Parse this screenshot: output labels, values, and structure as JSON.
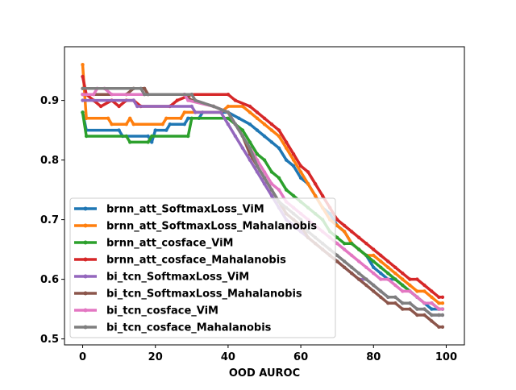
{
  "chart_data": {
    "type": "line",
    "title": "",
    "xlabel": "OOD AUROC",
    "ylabel": "",
    "xlim": [
      -5,
      105
    ],
    "ylim": [
      0.49,
      0.99
    ],
    "xticks": [
      0,
      20,
      40,
      60,
      80,
      100
    ],
    "xtick_labels": [
      "0",
      "20",
      "40",
      "60",
      "80",
      "100"
    ],
    "yticks": [
      0.5,
      0.6,
      0.7,
      0.8,
      0.9
    ],
    "ytick_labels": [
      "0.5",
      "0.6",
      "0.7",
      "0.8",
      "0.9"
    ],
    "grid": false,
    "legend_position": "lower-left",
    "series": [
      {
        "name": "brnn_att_SoftmaxLoss_ViM",
        "color": "#1f77b4",
        "points": [
          [
            0,
            0.88
          ],
          [
            1,
            0.85
          ],
          [
            10,
            0.85
          ],
          [
            11,
            0.84
          ],
          [
            18,
            0.84
          ],
          [
            19,
            0.83
          ],
          [
            20,
            0.85
          ],
          [
            23,
            0.85
          ],
          [
            24,
            0.86
          ],
          [
            28,
            0.86
          ],
          [
            29,
            0.87
          ],
          [
            32,
            0.87
          ],
          [
            33,
            0.88
          ],
          [
            40,
            0.88
          ],
          [
            43,
            0.87
          ],
          [
            46,
            0.86
          ],
          [
            48,
            0.85
          ],
          [
            50,
            0.84
          ],
          [
            52,
            0.83
          ],
          [
            54,
            0.82
          ],
          [
            56,
            0.8
          ],
          [
            58,
            0.79
          ],
          [
            60,
            0.77
          ],
          [
            62,
            0.76
          ],
          [
            64,
            0.74
          ],
          [
            66,
            0.72
          ],
          [
            68,
            0.71
          ],
          [
            70,
            0.69
          ],
          [
            72,
            0.68
          ],
          [
            74,
            0.66
          ],
          [
            76,
            0.65
          ],
          [
            78,
            0.64
          ],
          [
            80,
            0.62
          ],
          [
            82,
            0.61
          ],
          [
            84,
            0.6
          ],
          [
            86,
            0.6
          ],
          [
            88,
            0.59
          ],
          [
            90,
            0.58
          ],
          [
            92,
            0.57
          ],
          [
            94,
            0.56
          ],
          [
            96,
            0.55
          ],
          [
            98,
            0.55
          ],
          [
            99,
            0.55
          ]
        ]
      },
      {
        "name": "brnn_att_SoftmaxLoss_Mahalanobis",
        "color": "#ff7f0e",
        "points": [
          [
            0,
            0.96
          ],
          [
            1,
            0.87
          ],
          [
            7,
            0.87
          ],
          [
            8,
            0.86
          ],
          [
            12,
            0.86
          ],
          [
            13,
            0.87
          ],
          [
            14,
            0.86
          ],
          [
            22,
            0.86
          ],
          [
            23,
            0.87
          ],
          [
            27,
            0.87
          ],
          [
            28,
            0.88
          ],
          [
            38,
            0.88
          ],
          [
            40,
            0.89
          ],
          [
            44,
            0.89
          ],
          [
            46,
            0.88
          ],
          [
            48,
            0.87
          ],
          [
            50,
            0.86
          ],
          [
            52,
            0.85
          ],
          [
            54,
            0.84
          ],
          [
            56,
            0.82
          ],
          [
            58,
            0.8
          ],
          [
            60,
            0.78
          ],
          [
            62,
            0.76
          ],
          [
            64,
            0.74
          ],
          [
            66,
            0.72
          ],
          [
            68,
            0.7
          ],
          [
            70,
            0.69
          ],
          [
            72,
            0.68
          ],
          [
            74,
            0.66
          ],
          [
            76,
            0.65
          ],
          [
            78,
            0.64
          ],
          [
            80,
            0.64
          ],
          [
            82,
            0.63
          ],
          [
            84,
            0.62
          ],
          [
            86,
            0.61
          ],
          [
            88,
            0.6
          ],
          [
            90,
            0.59
          ],
          [
            92,
            0.58
          ],
          [
            94,
            0.58
          ],
          [
            96,
            0.57
          ],
          [
            98,
            0.56
          ],
          [
            99,
            0.56
          ]
        ]
      },
      {
        "name": "brnn_att_cosface_ViM",
        "color": "#2ca02c",
        "points": [
          [
            0,
            0.88
          ],
          [
            1,
            0.84
          ],
          [
            12,
            0.84
          ],
          [
            13,
            0.83
          ],
          [
            18,
            0.83
          ],
          [
            19,
            0.84
          ],
          [
            29,
            0.84
          ],
          [
            30,
            0.87
          ],
          [
            40,
            0.87
          ],
          [
            42,
            0.86
          ],
          [
            44,
            0.85
          ],
          [
            46,
            0.83
          ],
          [
            48,
            0.81
          ],
          [
            50,
            0.8
          ],
          [
            52,
            0.78
          ],
          [
            54,
            0.77
          ],
          [
            56,
            0.75
          ],
          [
            58,
            0.74
          ],
          [
            60,
            0.73
          ],
          [
            62,
            0.72
          ],
          [
            64,
            0.71
          ],
          [
            66,
            0.7
          ],
          [
            68,
            0.68
          ],
          [
            70,
            0.67
          ],
          [
            72,
            0.66
          ],
          [
            74,
            0.66
          ],
          [
            76,
            0.65
          ],
          [
            78,
            0.64
          ],
          [
            80,
            0.63
          ],
          [
            82,
            0.62
          ],
          [
            84,
            0.61
          ],
          [
            86,
            0.6
          ],
          [
            88,
            0.59
          ],
          [
            90,
            0.58
          ],
          [
            92,
            0.57
          ],
          [
            94,
            0.56
          ],
          [
            96,
            0.56
          ],
          [
            98,
            0.55
          ],
          [
            99,
            0.55
          ]
        ]
      },
      {
        "name": "brnn_att_cosface_Mahalanobis",
        "color": "#d62728",
        "points": [
          [
            0,
            0.94
          ],
          [
            1,
            0.91
          ],
          [
            3,
            0.9
          ],
          [
            5,
            0.89
          ],
          [
            8,
            0.9
          ],
          [
            10,
            0.89
          ],
          [
            12,
            0.9
          ],
          [
            14,
            0.9
          ],
          [
            16,
            0.89
          ],
          [
            24,
            0.89
          ],
          [
            26,
            0.9
          ],
          [
            30,
            0.91
          ],
          [
            40,
            0.91
          ],
          [
            42,
            0.9
          ],
          [
            46,
            0.89
          ],
          [
            48,
            0.88
          ],
          [
            50,
            0.87
          ],
          [
            52,
            0.86
          ],
          [
            54,
            0.85
          ],
          [
            56,
            0.83
          ],
          [
            58,
            0.81
          ],
          [
            60,
            0.79
          ],
          [
            62,
            0.78
          ],
          [
            64,
            0.76
          ],
          [
            66,
            0.74
          ],
          [
            68,
            0.72
          ],
          [
            70,
            0.7
          ],
          [
            72,
            0.69
          ],
          [
            74,
            0.68
          ],
          [
            76,
            0.67
          ],
          [
            78,
            0.66
          ],
          [
            80,
            0.65
          ],
          [
            82,
            0.64
          ],
          [
            84,
            0.63
          ],
          [
            86,
            0.62
          ],
          [
            88,
            0.61
          ],
          [
            90,
            0.6
          ],
          [
            92,
            0.6
          ],
          [
            94,
            0.59
          ],
          [
            96,
            0.58
          ],
          [
            98,
            0.57
          ],
          [
            99,
            0.57
          ]
        ]
      },
      {
        "name": "bi_tcn_SoftmaxLoss_ViM",
        "color": "#9467bd",
        "points": [
          [
            0,
            0.9
          ],
          [
            14,
            0.9
          ],
          [
            15,
            0.89
          ],
          [
            30,
            0.89
          ],
          [
            31,
            0.88
          ],
          [
            38,
            0.88
          ],
          [
            40,
            0.86
          ],
          [
            42,
            0.84
          ],
          [
            44,
            0.82
          ],
          [
            46,
            0.8
          ],
          [
            48,
            0.78
          ],
          [
            50,
            0.76
          ],
          [
            52,
            0.74
          ],
          [
            54,
            0.72
          ],
          [
            56,
            0.7
          ],
          [
            58,
            0.69
          ],
          [
            60,
            0.68
          ],
          [
            62,
            0.67
          ],
          [
            64,
            0.66
          ],
          [
            66,
            0.65
          ],
          [
            68,
            0.64
          ],
          [
            70,
            0.63
          ],
          [
            72,
            0.62
          ],
          [
            74,
            0.61
          ],
          [
            76,
            0.6
          ],
          [
            78,
            0.6
          ],
          [
            80,
            0.59
          ],
          [
            82,
            0.58
          ],
          [
            84,
            0.57
          ],
          [
            86,
            0.57
          ],
          [
            88,
            0.56
          ],
          [
            90,
            0.56
          ],
          [
            92,
            0.55
          ],
          [
            94,
            0.55
          ],
          [
            96,
            0.54
          ],
          [
            98,
            0.54
          ],
          [
            99,
            0.54
          ]
        ]
      },
      {
        "name": "bi_tcn_SoftmaxLoss_Mahalanobis",
        "color": "#8c564b",
        "points": [
          [
            0,
            0.91
          ],
          [
            12,
            0.91
          ],
          [
            14,
            0.92
          ],
          [
            17,
            0.92
          ],
          [
            18,
            0.91
          ],
          [
            28,
            0.91
          ],
          [
            30,
            0.9
          ],
          [
            36,
            0.89
          ],
          [
            40,
            0.88
          ],
          [
            42,
            0.86
          ],
          [
            44,
            0.84
          ],
          [
            46,
            0.81
          ],
          [
            48,
            0.79
          ],
          [
            50,
            0.77
          ],
          [
            52,
            0.75
          ],
          [
            54,
            0.73
          ],
          [
            56,
            0.71
          ],
          [
            58,
            0.7
          ],
          [
            60,
            0.69
          ],
          [
            62,
            0.67
          ],
          [
            64,
            0.66
          ],
          [
            66,
            0.65
          ],
          [
            68,
            0.64
          ],
          [
            70,
            0.63
          ],
          [
            72,
            0.62
          ],
          [
            74,
            0.61
          ],
          [
            76,
            0.6
          ],
          [
            78,
            0.59
          ],
          [
            80,
            0.58
          ],
          [
            82,
            0.57
          ],
          [
            84,
            0.56
          ],
          [
            86,
            0.56
          ],
          [
            88,
            0.55
          ],
          [
            90,
            0.55
          ],
          [
            92,
            0.54
          ],
          [
            94,
            0.54
          ],
          [
            96,
            0.53
          ],
          [
            98,
            0.52
          ],
          [
            99,
            0.52
          ]
        ]
      },
      {
        "name": "bi_tcn_cosface_ViM",
        "color": "#e377c2",
        "points": [
          [
            0,
            0.91
          ],
          [
            3,
            0.91
          ],
          [
            4,
            0.92
          ],
          [
            6,
            0.92
          ],
          [
            8,
            0.91
          ],
          [
            28,
            0.91
          ],
          [
            29,
            0.9
          ],
          [
            36,
            0.89
          ],
          [
            40,
            0.88
          ],
          [
            42,
            0.86
          ],
          [
            44,
            0.84
          ],
          [
            46,
            0.82
          ],
          [
            48,
            0.8
          ],
          [
            50,
            0.78
          ],
          [
            52,
            0.76
          ],
          [
            54,
            0.75
          ],
          [
            56,
            0.73
          ],
          [
            58,
            0.72
          ],
          [
            60,
            0.71
          ],
          [
            62,
            0.7
          ],
          [
            64,
            0.69
          ],
          [
            66,
            0.68
          ],
          [
            68,
            0.67
          ],
          [
            70,
            0.66
          ],
          [
            72,
            0.65
          ],
          [
            74,
            0.64
          ],
          [
            76,
            0.63
          ],
          [
            78,
            0.62
          ],
          [
            80,
            0.61
          ],
          [
            82,
            0.6
          ],
          [
            84,
            0.6
          ],
          [
            86,
            0.59
          ],
          [
            88,
            0.58
          ],
          [
            90,
            0.58
          ],
          [
            92,
            0.57
          ],
          [
            94,
            0.56
          ],
          [
            96,
            0.56
          ],
          [
            98,
            0.55
          ],
          [
            99,
            0.55
          ]
        ]
      },
      {
        "name": "bi_tcn_cosface_Mahalanobis",
        "color": "#7f7f7f",
        "points": [
          [
            0,
            0.92
          ],
          [
            16,
            0.92
          ],
          [
            17,
            0.91
          ],
          [
            30,
            0.91
          ],
          [
            31,
            0.9
          ],
          [
            36,
            0.89
          ],
          [
            40,
            0.88
          ],
          [
            42,
            0.86
          ],
          [
            44,
            0.84
          ],
          [
            46,
            0.82
          ],
          [
            48,
            0.79
          ],
          [
            50,
            0.77
          ],
          [
            52,
            0.75
          ],
          [
            54,
            0.73
          ],
          [
            56,
            0.72
          ],
          [
            58,
            0.71
          ],
          [
            60,
            0.7
          ],
          [
            62,
            0.68
          ],
          [
            64,
            0.67
          ],
          [
            66,
            0.66
          ],
          [
            68,
            0.65
          ],
          [
            70,
            0.64
          ],
          [
            72,
            0.63
          ],
          [
            74,
            0.62
          ],
          [
            76,
            0.61
          ],
          [
            78,
            0.6
          ],
          [
            80,
            0.59
          ],
          [
            82,
            0.58
          ],
          [
            84,
            0.57
          ],
          [
            86,
            0.57
          ],
          [
            88,
            0.56
          ],
          [
            90,
            0.56
          ],
          [
            92,
            0.55
          ],
          [
            94,
            0.55
          ],
          [
            96,
            0.54
          ],
          [
            98,
            0.54
          ],
          [
            99,
            0.54
          ]
        ]
      }
    ]
  }
}
